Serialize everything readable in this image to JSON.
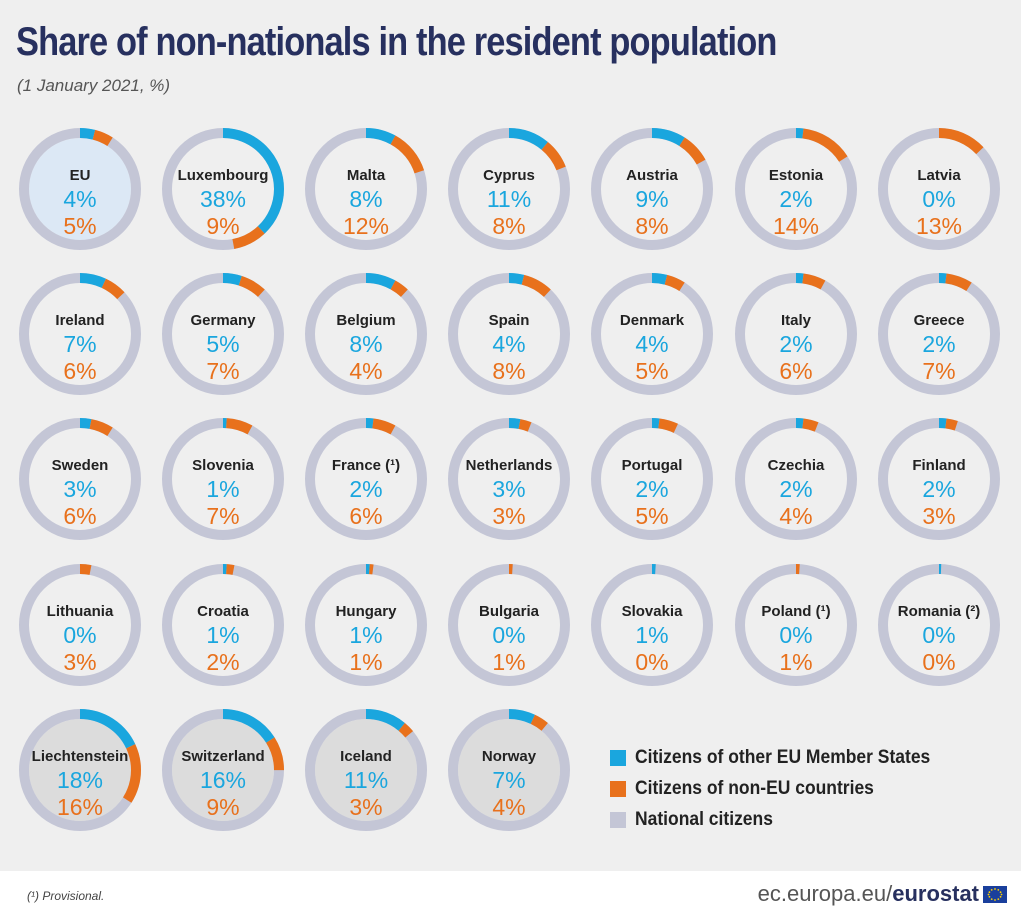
{
  "title": "Share of non-nationals in the resident population",
  "subtitle": "(1 January 2021, %)",
  "colors": {
    "eu_citizens": "#1aa6de",
    "non_eu_citizens": "#e8711c",
    "national": "#c4c6d6",
    "eu_highlight_fill": "#dce8f5",
    "efta_fill": "#dcdcdc",
    "title": "#27305f"
  },
  "legend": {
    "eu_citizens": "Citizens of other EU Member States",
    "non_eu_citizens": "Citizens of non-EU countries",
    "national": "National citizens"
  },
  "footnote": "(¹) Provisional.",
  "source": {
    "prefix": "ec.europa.eu/",
    "brand": "eurostat",
    "flag_icon": "eu-flag-icon"
  },
  "chart_data": {
    "type": "donut",
    "series": [
      {
        "name": "Citizens of other EU Member States"
      },
      {
        "name": "Citizens of non-EU countries"
      },
      {
        "name": "National citizens"
      }
    ],
    "countries": [
      {
        "name": "EU",
        "eu": 4,
        "non_eu": 5,
        "group": "eu"
      },
      {
        "name": "Luxembourg",
        "eu": 38,
        "non_eu": 9,
        "group": "member"
      },
      {
        "name": "Malta",
        "eu": 8,
        "non_eu": 12,
        "group": "member"
      },
      {
        "name": "Cyprus",
        "eu": 11,
        "non_eu": 8,
        "group": "member"
      },
      {
        "name": "Austria",
        "eu": 9,
        "non_eu": 8,
        "group": "member"
      },
      {
        "name": "Estonia",
        "eu": 2,
        "non_eu": 14,
        "group": "member"
      },
      {
        "name": "Latvia",
        "eu": 0,
        "non_eu": 13,
        "group": "member"
      },
      {
        "name": "Ireland",
        "eu": 7,
        "non_eu": 6,
        "group": "member"
      },
      {
        "name": "Germany",
        "eu": 5,
        "non_eu": 7,
        "group": "member"
      },
      {
        "name": "Belgium",
        "eu": 8,
        "non_eu": 4,
        "group": "member"
      },
      {
        "name": "Spain",
        "eu": 4,
        "non_eu": 8,
        "group": "member"
      },
      {
        "name": "Denmark",
        "eu": 4,
        "non_eu": 5,
        "group": "member"
      },
      {
        "name": "Italy",
        "eu": 2,
        "non_eu": 6,
        "group": "member"
      },
      {
        "name": "Greece",
        "eu": 2,
        "non_eu": 7,
        "group": "member"
      },
      {
        "name": "Sweden",
        "eu": 3,
        "non_eu": 6,
        "group": "member"
      },
      {
        "name": "Slovenia",
        "eu": 1,
        "non_eu": 7,
        "group": "member"
      },
      {
        "name": "France",
        "note": "(¹)",
        "eu": 2,
        "non_eu": 6,
        "group": "member"
      },
      {
        "name": "Netherlands",
        "eu": 3,
        "non_eu": 3,
        "group": "member"
      },
      {
        "name": "Portugal",
        "eu": 2,
        "non_eu": 5,
        "group": "member"
      },
      {
        "name": "Czechia",
        "eu": 2,
        "non_eu": 4,
        "group": "member"
      },
      {
        "name": "Finland",
        "eu": 2,
        "non_eu": 3,
        "group": "member"
      },
      {
        "name": "Lithuania",
        "eu": 0,
        "non_eu": 3,
        "group": "member"
      },
      {
        "name": "Croatia",
        "eu": 1,
        "non_eu": 2,
        "group": "member"
      },
      {
        "name": "Hungary",
        "eu": 1,
        "non_eu": 1,
        "group": "member"
      },
      {
        "name": "Bulgaria",
        "eu": 0,
        "non_eu": 1,
        "group": "member"
      },
      {
        "name": "Slovakia",
        "eu": 1,
        "non_eu": 0,
        "group": "member"
      },
      {
        "name": "Poland",
        "note": "(¹)",
        "eu": 0,
        "non_eu": 1,
        "group": "member"
      },
      {
        "name": "Romania",
        "note": "(²)",
        "eu": 0,
        "non_eu": 0,
        "group": "member"
      },
      {
        "name": "Liechtenstein",
        "eu": 18,
        "non_eu": 16,
        "group": "efta"
      },
      {
        "name": "Switzerland",
        "eu": 16,
        "non_eu": 9,
        "group": "efta"
      },
      {
        "name": "Iceland",
        "eu": 11,
        "non_eu": 3,
        "group": "efta"
      },
      {
        "name": "Norway",
        "eu": 7,
        "non_eu": 4,
        "group": "efta"
      }
    ]
  }
}
